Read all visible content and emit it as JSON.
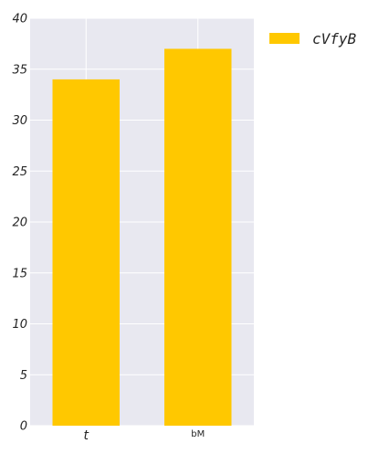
{
  "chart_data": {
    "type": "bar",
    "categories": [
      "t",
      "bM"
    ],
    "series": [
      {
        "name": "cVfyB",
        "values": [
          34,
          37
        ]
      }
    ],
    "ylim": [
      0,
      40
    ],
    "yticks": [
      0,
      5,
      10,
      15,
      20,
      25,
      30,
      35,
      40
    ],
    "grid": true,
    "legend_position": "top-right",
    "colors": {
      "bar": "#ffc800",
      "plot_background": "#e8e8f0",
      "grid": "#ffffff"
    }
  }
}
